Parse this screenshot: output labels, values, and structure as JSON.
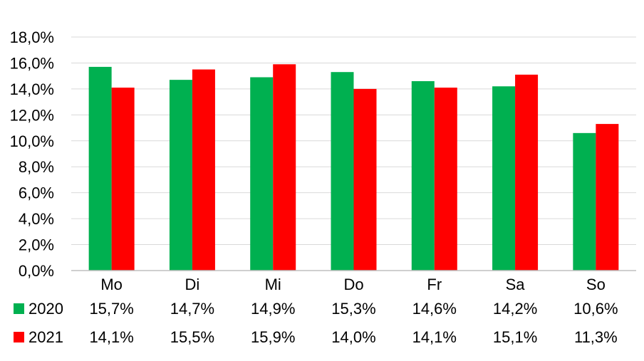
{
  "chart_data": {
    "type": "bar",
    "categories": [
      "Mo",
      "Di",
      "Mi",
      "Do",
      "Fr",
      "Sa",
      "So"
    ],
    "series": [
      {
        "name": "2020",
        "color": "#00b050",
        "values": [
          15.7,
          14.7,
          14.9,
          15.3,
          14.6,
          14.2,
          10.6
        ],
        "labels": [
          "15,7%",
          "14,7%",
          "14,9%",
          "15,3%",
          "14,6%",
          "14,2%",
          "10,6%"
        ]
      },
      {
        "name": "2021",
        "color": "#ff0000",
        "values": [
          14.1,
          15.5,
          15.9,
          14.0,
          14.1,
          15.1,
          11.3
        ],
        "labels": [
          "14,1%",
          "15,5%",
          "15,9%",
          "14,0%",
          "14,1%",
          "15,1%",
          "11,3%"
        ]
      }
    ],
    "ylim": [
      0,
      18
    ],
    "yticks": [
      "0,0%",
      "2,0%",
      "4,0%",
      "6,0%",
      "8,0%",
      "10,0%",
      "12,0%",
      "14,0%",
      "16,0%",
      "18,0%"
    ],
    "grid": true,
    "legend_placement": "bottom data table",
    "gridline_color": "#d9d9d9",
    "axis_color": "#bfbfbf"
  }
}
